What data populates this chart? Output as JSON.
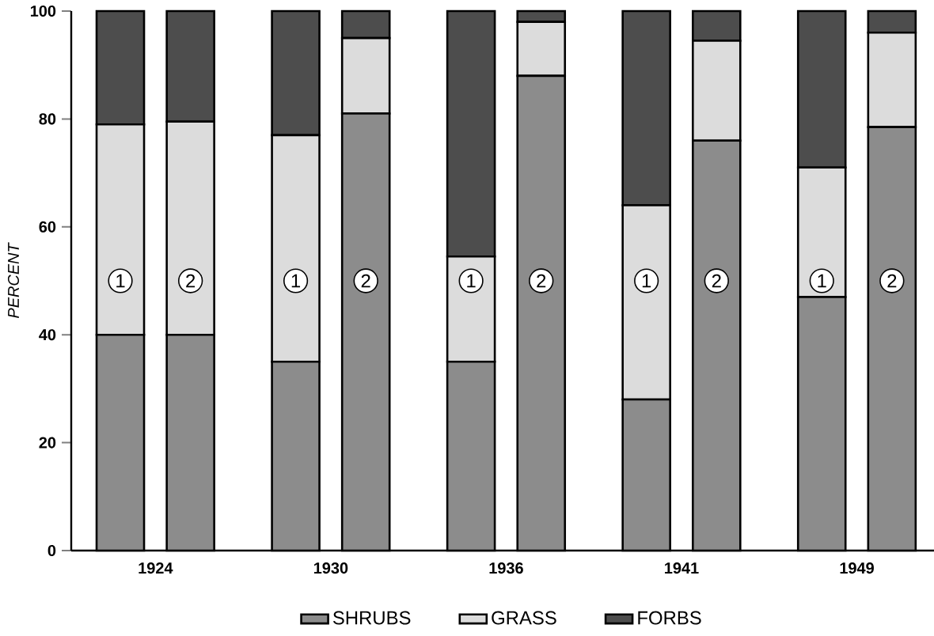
{
  "chart_data": {
    "type": "bar",
    "stacked": true,
    "ylabel": "PERCENT",
    "categories": [
      "1",
      "2",
      "1",
      "2",
      "1",
      "2",
      "1",
      "2",
      "1",
      "2"
    ],
    "series": [
      {
        "name": "SHRUBS",
        "color": "#8c8c8c",
        "values": [
          40,
          40,
          35,
          81,
          35,
          88,
          28,
          76,
          47,
          78.5
        ]
      },
      {
        "name": "GRASS",
        "color": "#dcdcdc",
        "values": [
          39,
          39.5,
          42,
          14,
          19.5,
          10,
          36,
          18.5,
          24,
          17.5
        ]
      },
      {
        "name": "FORBS",
        "color": "#4d4d4d",
        "values": [
          21,
          20.5,
          23,
          5,
          45.5,
          2,
          36,
          5.5,
          29,
          4
        ]
      }
    ],
    "ylim": [
      0,
      100
    ],
    "yticks": [
      0,
      20,
      40,
      60,
      80,
      100
    ],
    "grid": false,
    "legend": "bottom",
    "annotations": [
      "1924",
      "1930",
      "1936",
      "1941",
      "1949"
    ]
  }
}
